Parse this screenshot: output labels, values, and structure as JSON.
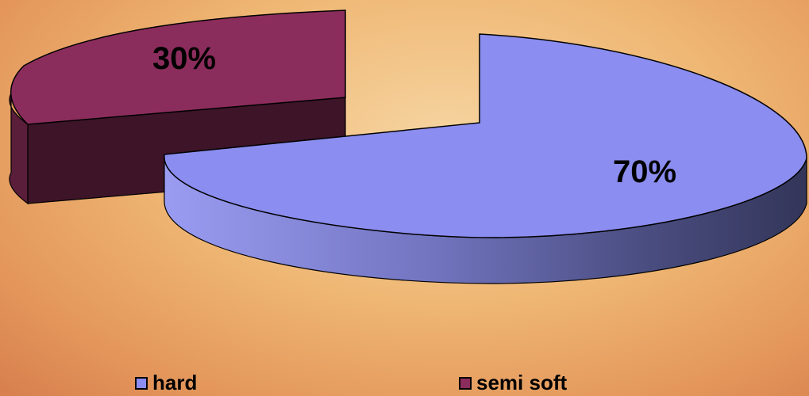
{
  "chart_data": {
    "type": "pie",
    "style": "3d-exploded",
    "title": "",
    "slices": [
      {
        "label": "hard",
        "value": 70,
        "display": "70%",
        "color": "#8b8df0",
        "side_color": "#3b3f66"
      },
      {
        "label": "semi soft",
        "value": 30,
        "display": "30%",
        "color": "#8b2d5c",
        "side_color": "#3d1428"
      }
    ],
    "legend": {
      "placement": "bottom",
      "items": [
        {
          "label": "hard",
          "color": "#8b8df0"
        },
        {
          "label": "semi soft",
          "color": "#8b2d5c"
        }
      ]
    }
  }
}
